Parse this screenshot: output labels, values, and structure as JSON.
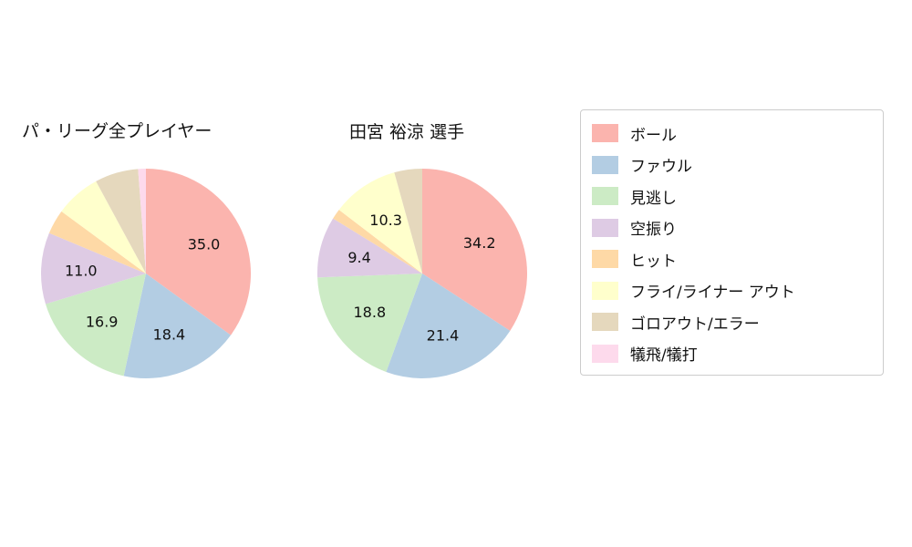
{
  "chart_data": [
    {
      "type": "pie",
      "title": "パ・リーグ全プレイヤー",
      "start_angle": "top",
      "direction": "clockwise",
      "labels": [
        "ボール",
        "ファウル",
        "見逃し",
        "空振り",
        "ヒット",
        "フライ/ライナー アウト",
        "ゴロアウト/エラー",
        "犠飛/犠打"
      ],
      "values": [
        35.0,
        18.4,
        16.9,
        11.0,
        3.8,
        7.0,
        6.7,
        1.2
      ],
      "value_labels": [
        "35.0",
        "18.4",
        "16.9",
        "11.0",
        "",
        "",
        "",
        ""
      ]
    },
    {
      "type": "pie",
      "title": "田宮 裕涼  選手",
      "start_angle": "top",
      "direction": "clockwise",
      "labels": [
        "ボール",
        "ファウル",
        "見逃し",
        "空振り",
        "ヒット",
        "フライ/ライナー アウト",
        "ゴロアウト/エラー",
        "犠飛/犠打"
      ],
      "values": [
        34.2,
        21.4,
        18.8,
        9.4,
        1.6,
        10.3,
        4.3,
        0.0
      ],
      "value_labels": [
        "34.2",
        "21.4",
        "18.8",
        "9.4",
        "",
        "10.3",
        "",
        ""
      ]
    }
  ],
  "legend": {
    "items": [
      {
        "label": "ボール",
        "color": "#fbb4ae"
      },
      {
        "label": "ファウル",
        "color": "#b3cde3"
      },
      {
        "label": "見逃し",
        "color": "#ccebc5"
      },
      {
        "label": "空振り",
        "color": "#decbe4"
      },
      {
        "label": "ヒット",
        "color": "#fed9a6"
      },
      {
        "label": "フライ/ライナー アウト",
        "color": "#ffffcc"
      },
      {
        "label": "ゴロアウト/エラー",
        "color": "#e5d8bd"
      },
      {
        "label": "犠飛/犠打",
        "color": "#fddaec"
      }
    ]
  }
}
